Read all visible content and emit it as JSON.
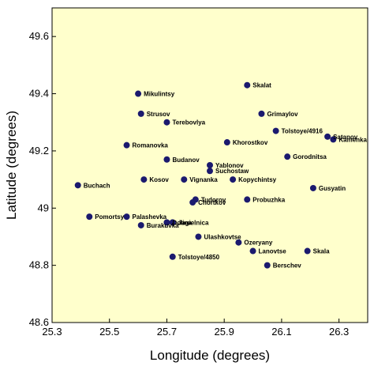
{
  "chart_data": {
    "type": "scatter",
    "xlabel": "Longitude (degrees)",
    "ylabel": "Latitude (degrees)",
    "xlim": [
      25.3,
      26.4
    ],
    "ylim": [
      48.6,
      49.7
    ],
    "xticks": [
      25.3,
      25.5,
      25.7,
      25.9,
      26.1,
      26.3
    ],
    "yticks": [
      48.6,
      48.8,
      49,
      49.2,
      49.4,
      49.6
    ],
    "xtick_labels": [
      "25.3",
      "25.5",
      "25.7",
      "25.9",
      "26.1",
      "26.3"
    ],
    "ytick_labels": [
      "48.6",
      "48.8",
      "49",
      "49.2",
      "49.4",
      "49.6"
    ],
    "grid": false,
    "colors": {
      "background": "#FFFFCC",
      "point": "#1B1A6E"
    },
    "points": [
      {
        "name": "Skalat",
        "x": 25.98,
        "y": 49.43
      },
      {
        "name": "Mikulintsy",
        "x": 25.6,
        "y": 49.4
      },
      {
        "name": "Strusov",
        "x": 25.61,
        "y": 49.33
      },
      {
        "name": "Grimaylov",
        "x": 26.03,
        "y": 49.33
      },
      {
        "name": "Terebovlya",
        "x": 25.7,
        "y": 49.3
      },
      {
        "name": "Tolstoye/4916",
        "x": 26.08,
        "y": 49.27
      },
      {
        "name": "Satanov",
        "x": 26.26,
        "y": 49.25
      },
      {
        "name": "Khorostkov",
        "x": 25.91,
        "y": 49.23
      },
      {
        "name": "Kamenka",
        "x": 26.28,
        "y": 49.24
      },
      {
        "name": "Romanovka",
        "x": 25.56,
        "y": 49.22
      },
      {
        "name": "Gorodnitsa",
        "x": 26.12,
        "y": 49.18
      },
      {
        "name": "Budanov",
        "x": 25.7,
        "y": 49.17
      },
      {
        "name": "Yablonov",
        "x": 25.85,
        "y": 49.15
      },
      {
        "name": "Suchostaw",
        "x": 25.85,
        "y": 49.13
      },
      {
        "name": "Buchach",
        "x": 25.39,
        "y": 49.08
      },
      {
        "name": "Kosov",
        "x": 25.62,
        "y": 49.1
      },
      {
        "name": "Vignanka",
        "x": 25.76,
        "y": 49.1
      },
      {
        "name": "Kopychintsy",
        "x": 25.93,
        "y": 49.1
      },
      {
        "name": "Gusyatin",
        "x": 26.21,
        "y": 49.07
      },
      {
        "name": "Tudorov",
        "x": 25.8,
        "y": 49.03
      },
      {
        "name": "Probuzhka",
        "x": 25.98,
        "y": 49.03
      },
      {
        "name": "Chortkov",
        "x": 25.79,
        "y": 49.02
      },
      {
        "name": "Palashevka",
        "x": 25.56,
        "y": 48.97
      },
      {
        "name": "Dolina",
        "x": 25.7,
        "y": 48.95
      },
      {
        "name": "Pomortsy",
        "x": 25.43,
        "y": 48.97
      },
      {
        "name": "Jagielnica",
        "x": 25.72,
        "y": 48.95
      },
      {
        "name": "Burakuvka",
        "x": 25.61,
        "y": 48.94
      },
      {
        "name": "Ulashkovtse",
        "x": 25.81,
        "y": 48.9
      },
      {
        "name": "Ozeryany",
        "x": 25.95,
        "y": 48.88
      },
      {
        "name": "Lanovtse",
        "x": 26.0,
        "y": 48.85
      },
      {
        "name": "Skala",
        "x": 26.19,
        "y": 48.85
      },
      {
        "name": "Tolstoye/4850",
        "x": 25.72,
        "y": 48.83
      },
      {
        "name": "Berschev",
        "x": 26.05,
        "y": 48.8
      }
    ]
  }
}
